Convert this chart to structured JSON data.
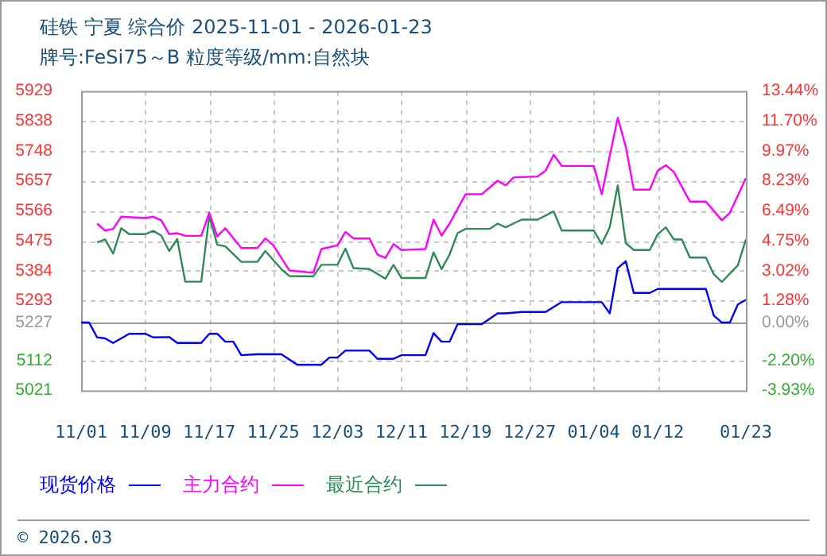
{
  "chart_data": {
    "type": "line",
    "title": "硅铁 宁夏 综合价 2025-11-01 - 2026-01-23",
    "subtitle": "牌号:FeSi75～B 粒度等级/mm:自然块",
    "xlim": [
      "2025-11-01",
      "2026-01-23"
    ],
    "xticks": [
      {
        "value": "2025-11-01",
        "label": "11/01"
      },
      {
        "value": "2025-11-09",
        "label": "11/09"
      },
      {
        "value": "2025-11-17",
        "label": "11/17"
      },
      {
        "value": "2025-11-25",
        "label": "11/25"
      },
      {
        "value": "2025-12-03",
        "label": "12/03"
      },
      {
        "value": "2025-12-11",
        "label": "12/11"
      },
      {
        "value": "2025-12-19",
        "label": "12/19"
      },
      {
        "value": "2025-12-27",
        "label": "12/27"
      },
      {
        "value": "2026-01-04",
        "label": "01/04"
      },
      {
        "value": "2026-01-12",
        "label": "01/12"
      },
      {
        "value": "2026-01-23",
        "label": "01/23"
      }
    ],
    "ylim": [
      5021,
      5929
    ],
    "yticks": [
      5021,
      5112,
      5227,
      5293,
      5384,
      5475,
      5566,
      5657,
      5748,
      5838,
      5929
    ],
    "y2lim": [
      -3.93,
      13.44
    ],
    "y2ticks": [
      {
        "value": -3.93,
        "label": "-3.93%"
      },
      {
        "value": -2.2,
        "label": "-2.20%"
      },
      {
        "value": 0,
        "label": "0.00%"
      },
      {
        "value": 1.28,
        "label": "1.28%"
      },
      {
        "value": 3.02,
        "label": "3.02%"
      },
      {
        "value": 4.75,
        "label": "4.75%"
      },
      {
        "value": 6.49,
        "label": "6.49%"
      },
      {
        "value": 8.23,
        "label": "8.23%"
      },
      {
        "value": 9.97,
        "label": "9.97%"
      },
      {
        "value": 11.7,
        "label": "11.70%"
      },
      {
        "value": 13.44,
        "label": "13.44%"
      }
    ],
    "ref_lines": [
      {
        "axis": "y",
        "value": 5227,
        "color": "#999999"
      }
    ],
    "grid": true,
    "legend": "bottom",
    "marker": "none",
    "line_style": "solid",
    "annotations": [
      "© 2026.03"
    ],
    "series": [
      {
        "name": "现货价格",
        "color": "#0000ff",
        "x": [
          "2025-11-01",
          "2025-11-02",
          "2025-11-03",
          "2025-11-04",
          "2025-11-05",
          "2025-11-07",
          "2025-11-09",
          "2025-11-10",
          "2025-11-12",
          "2025-11-13",
          "2025-11-16",
          "2025-11-17",
          "2025-11-18",
          "2025-11-19",
          "2025-11-20",
          "2025-11-21",
          "2025-11-23",
          "2025-11-26",
          "2025-11-28",
          "2025-12-01",
          "2025-12-02",
          "2025-12-03",
          "2025-12-04",
          "2025-12-07",
          "2025-12-08",
          "2025-12-10",
          "2025-12-11",
          "2025-12-14",
          "2025-12-15",
          "2025-12-16",
          "2025-12-17",
          "2025-12-18",
          "2025-12-21",
          "2025-12-23",
          "2025-12-24",
          "2025-12-26",
          "2025-12-29",
          "2025-12-31",
          "2026-01-05",
          "2026-01-06",
          "2026-01-07",
          "2026-01-08",
          "2026-01-09",
          "2026-01-11",
          "2026-01-12",
          "2026-01-18",
          "2026-01-19",
          "2026-01-20",
          "2026-01-21",
          "2026-01-22",
          "2026-01-23"
        ],
        "values": [
          5227,
          5227,
          5182,
          5179,
          5165,
          5193,
          5193,
          5182,
          5183,
          5165,
          5165,
          5193,
          5193,
          5169,
          5169,
          5128,
          5131,
          5131,
          5099,
          5099,
          5121,
          5121,
          5142,
          5142,
          5117,
          5117,
          5128,
          5128,
          5195,
          5169,
          5169,
          5222,
          5222,
          5255,
          5255,
          5259,
          5259,
          5289,
          5289,
          5255,
          5392,
          5413,
          5317,
          5317,
          5329,
          5329,
          5248,
          5227,
          5227,
          5282,
          5296
        ]
      },
      {
        "name": "主力合约",
        "color": "#ff00ff",
        "x": [
          "2025-11-03",
          "2025-11-04",
          "2025-11-05",
          "2025-11-06",
          "2025-11-09",
          "2025-11-10",
          "2025-11-11",
          "2025-11-12",
          "2025-11-13",
          "2025-11-14",
          "2025-11-16",
          "2025-11-17",
          "2025-11-18",
          "2025-11-19",
          "2025-11-21",
          "2025-11-23",
          "2025-11-24",
          "2025-11-25",
          "2025-11-27",
          "2025-11-30",
          "2025-12-01",
          "2025-12-03",
          "2025-12-04",
          "2025-12-05",
          "2025-12-07",
          "2025-12-08",
          "2025-12-09",
          "2025-12-10",
          "2025-12-11",
          "2025-12-14",
          "2025-12-15",
          "2025-12-16",
          "2025-12-17",
          "2025-12-19",
          "2025-12-21",
          "2025-12-23",
          "2025-12-24",
          "2025-12-25",
          "2025-12-28",
          "2025-12-29",
          "2025-12-30",
          "2025-12-31",
          "2026-01-04",
          "2026-01-05",
          "2026-01-07",
          "2026-01-08",
          "2026-01-09",
          "2026-01-11",
          "2026-01-12",
          "2026-01-13",
          "2026-01-14",
          "2026-01-16",
          "2026-01-18",
          "2026-01-20",
          "2026-01-21",
          "2026-01-23"
        ],
        "values": [
          5527,
          5506,
          5511,
          5548,
          5544,
          5548,
          5537,
          5495,
          5498,
          5490,
          5490,
          5560,
          5488,
          5513,
          5453,
          5453,
          5482,
          5461,
          5385,
          5378,
          5450,
          5461,
          5502,
          5482,
          5482,
          5433,
          5423,
          5465,
          5447,
          5450,
          5539,
          5491,
          5527,
          5616,
          5616,
          5657,
          5643,
          5667,
          5670,
          5688,
          5736,
          5702,
          5702,
          5616,
          5848,
          5761,
          5630,
          5630,
          5688,
          5704,
          5684,
          5594,
          5594,
          5537,
          5560,
          5665
        ]
      },
      {
        "name": "最近合约",
        "color": "#2e8b57",
        "x": [
          "2025-11-03",
          "2025-11-04",
          "2025-11-05",
          "2025-11-06",
          "2025-11-07",
          "2025-11-09",
          "2025-11-10",
          "2025-11-11",
          "2025-11-12",
          "2025-11-13",
          "2025-11-14",
          "2025-11-16",
          "2025-11-17",
          "2025-11-18",
          "2025-11-19",
          "2025-11-21",
          "2025-11-23",
          "2025-11-24",
          "2025-11-26",
          "2025-11-27",
          "2025-11-30",
          "2025-12-01",
          "2025-12-03",
          "2025-12-04",
          "2025-12-05",
          "2025-12-07",
          "2025-12-09",
          "2025-12-10",
          "2025-12-11",
          "2025-12-14",
          "2025-12-15",
          "2025-12-16",
          "2025-12-17",
          "2025-12-18",
          "2025-12-19",
          "2025-12-22",
          "2025-12-23",
          "2025-12-24",
          "2025-12-26",
          "2025-12-28",
          "2025-12-30",
          "2025-12-31",
          "2026-01-04",
          "2026-01-05",
          "2026-01-06",
          "2026-01-07",
          "2026-01-08",
          "2026-01-09",
          "2026-01-11",
          "2026-01-12",
          "2026-01-13",
          "2026-01-14",
          "2026-01-15",
          "2026-01-16",
          "2026-01-18",
          "2026-01-19",
          "2026-01-20",
          "2026-01-22",
          "2026-01-23"
        ],
        "values": [
          5470,
          5479,
          5436,
          5513,
          5495,
          5495,
          5505,
          5491,
          5444,
          5480,
          5351,
          5351,
          5550,
          5463,
          5458,
          5411,
          5411,
          5444,
          5389,
          5368,
          5367,
          5402,
          5402,
          5451,
          5392,
          5389,
          5360,
          5402,
          5362,
          5362,
          5440,
          5389,
          5433,
          5498,
          5511,
          5511,
          5527,
          5516,
          5539,
          5539,
          5564,
          5506,
          5506,
          5465,
          5516,
          5643,
          5468,
          5447,
          5447,
          5495,
          5516,
          5479,
          5479,
          5424,
          5424,
          5373,
          5350,
          5401,
          5479
        ]
      }
    ]
  }
}
